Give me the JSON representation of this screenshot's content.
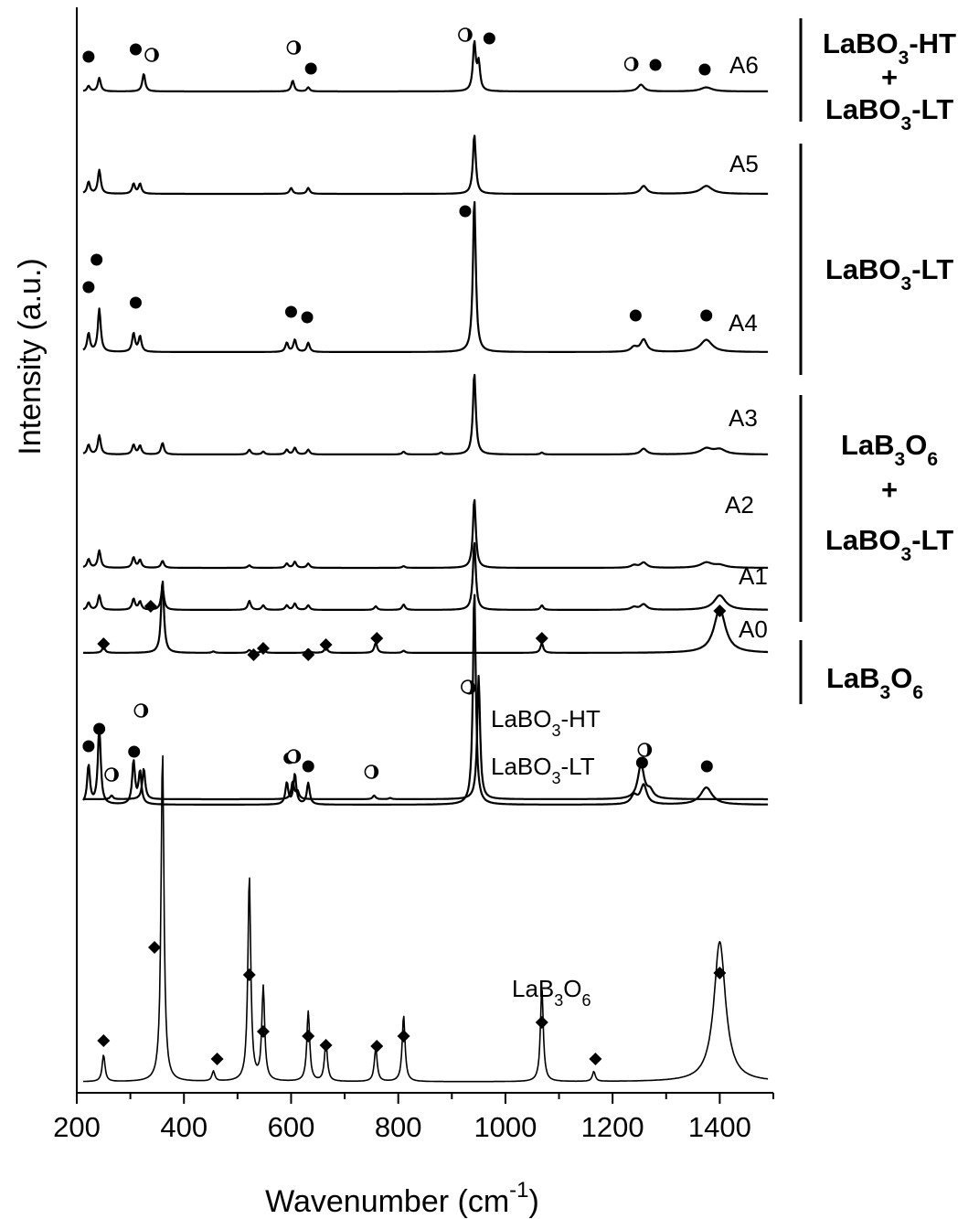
{
  "chart_data": {
    "type": "line",
    "title": "",
    "xlabel": "Wavenumber (cm",
    "xlabel_sup": "-1",
    "xlabel_suffix": ")",
    "ylabel": "Intensity (a.u.)",
    "xlim": [
      200,
      1500
    ],
    "x_ticks": [
      200,
      400,
      600,
      800,
      1000,
      1200,
      1400
    ],
    "x_tick_labels": [
      "200",
      "400",
      "600",
      "800",
      "1000",
      "1200",
      "1400"
    ],
    "grid": false,
    "y_tick_labels": false,
    "markers": {
      "filled_circle": "LaBO3-LT band",
      "half_circle": "LaBO3-HT band",
      "diamond": "LaB3O6 band"
    },
    "series": [
      {
        "name": "LaB3O6",
        "label": "LaB₃O₆",
        "label_base": "LaB",
        "label_sub1": "3",
        "label_mid": "O",
        "label_sub2": "6",
        "peaks": [
          [
            250,
            0.08
          ],
          [
            360,
            1.0
          ],
          [
            455,
            0.03
          ],
          [
            522,
            0.62
          ],
          [
            548,
            0.28
          ],
          [
            632,
            0.21
          ],
          [
            665,
            0.12
          ],
          [
            758,
            0.1
          ],
          [
            810,
            0.2
          ],
          [
            1068,
            0.28
          ],
          [
            1165,
            0.03
          ],
          [
            1400,
            0.42
          ]
        ],
        "markers": [
          {
            "type": "diamond",
            "x": 250
          },
          {
            "type": "diamond",
            "x": 345
          },
          {
            "type": "diamond",
            "x": 462
          },
          {
            "type": "diamond",
            "x": 522
          },
          {
            "type": "diamond",
            "x": 548
          },
          {
            "type": "diamond",
            "x": 632
          },
          {
            "type": "diamond",
            "x": 665
          },
          {
            "type": "diamond",
            "x": 760
          },
          {
            "type": "diamond",
            "x": 810
          },
          {
            "type": "diamond",
            "x": 1068
          },
          {
            "type": "diamond",
            "x": 1168
          },
          {
            "type": "diamond",
            "x": 1400
          }
        ]
      },
      {
        "name": "LaBO3-LT",
        "label": "LaBO₃-LT",
        "label_base": "LaBO",
        "label_sub1": "3",
        "label_mid": "-LT",
        "label_sub2": "",
        "peaks": [
          [
            222,
            0.18
          ],
          [
            242,
            0.36
          ],
          [
            306,
            0.2
          ],
          [
            318,
            0.15
          ],
          [
            592,
            0.1
          ],
          [
            607,
            0.14
          ],
          [
            632,
            0.1
          ],
          [
            942,
            1.0
          ],
          [
            1240,
            0.04
          ],
          [
            1258,
            0.09
          ],
          [
            1375,
            0.08
          ]
        ],
        "markers": [
          {
            "type": "circle",
            "x": 222
          },
          {
            "type": "circle",
            "x": 242
          },
          {
            "type": "circle",
            "x": 307
          },
          {
            "type": "circle",
            "x": 597
          },
          {
            "type": "circle",
            "x": 632
          },
          {
            "type": "circle",
            "x": 933
          },
          {
            "type": "circle",
            "x": 1255
          },
          {
            "type": "circle",
            "x": 1376
          }
        ]
      },
      {
        "name": "LaBO3-HT",
        "label": "LaBO₃-HT",
        "label_base": "LaBO",
        "label_sub1": "3",
        "label_mid": "-HT",
        "label_sub2": "",
        "peaks": [
          [
            265,
            0.03
          ],
          [
            325,
            0.25
          ],
          [
            603,
            0.14
          ],
          [
            612,
            0.06
          ],
          [
            755,
            0.03
          ],
          [
            785,
            0.01
          ],
          [
            950,
            1.0
          ],
          [
            1253,
            0.28
          ],
          [
            1270,
            0.06
          ]
        ],
        "markers": [
          {
            "type": "half",
            "x": 265
          },
          {
            "type": "half",
            "x": 320
          },
          {
            "type": "half",
            "x": 605
          },
          {
            "type": "half",
            "x": 750
          },
          {
            "type": "half",
            "x": 930
          },
          {
            "type": "half",
            "x": 1260
          }
        ]
      },
      {
        "name": "A0",
        "label": "A0",
        "peaks": [
          [
            250,
            0.08
          ],
          [
            360,
            1.0
          ],
          [
            455,
            0.02
          ],
          [
            522,
            0.04
          ],
          [
            548,
            0.05
          ],
          [
            632,
            0.05
          ],
          [
            665,
            0.08
          ],
          [
            758,
            0.14
          ],
          [
            810,
            0.03
          ],
          [
            1068,
            0.13
          ],
          [
            1400,
            0.6
          ]
        ],
        "markers": [
          {
            "type": "diamond",
            "x": 250
          },
          {
            "type": "diamond",
            "x": 338
          },
          {
            "type": "diamond",
            "x": 530
          },
          {
            "type": "diamond",
            "x": 548
          },
          {
            "type": "diamond",
            "x": 632
          },
          {
            "type": "diamond",
            "x": 665
          },
          {
            "type": "diamond",
            "x": 760
          },
          {
            "type": "diamond",
            "x": 1068
          },
          {
            "type": "diamond",
            "x": 1400
          }
        ]
      },
      {
        "name": "A1",
        "label": "A1",
        "peaks": [
          [
            222,
            0.08
          ],
          [
            242,
            0.16
          ],
          [
            306,
            0.12
          ],
          [
            318,
            0.09
          ],
          [
            360,
            0.25
          ],
          [
            522,
            0.1
          ],
          [
            548,
            0.05
          ],
          [
            592,
            0.05
          ],
          [
            607,
            0.07
          ],
          [
            632,
            0.05
          ],
          [
            758,
            0.04
          ],
          [
            810,
            0.06
          ],
          [
            942,
            0.75
          ],
          [
            1068,
            0.05
          ],
          [
            1240,
            0.03
          ],
          [
            1258,
            0.06
          ],
          [
            1400,
            0.16
          ]
        ],
        "markers": []
      },
      {
        "name": "A2",
        "label": "A2",
        "peaks": [
          [
            222,
            0.1
          ],
          [
            242,
            0.2
          ],
          [
            306,
            0.12
          ],
          [
            318,
            0.09
          ],
          [
            360,
            0.08
          ],
          [
            522,
            0.03
          ],
          [
            592,
            0.05
          ],
          [
            607,
            0.07
          ],
          [
            632,
            0.05
          ],
          [
            810,
            0.02
          ],
          [
            942,
            0.8
          ],
          [
            1240,
            0.03
          ],
          [
            1258,
            0.06
          ],
          [
            1375,
            0.06
          ],
          [
            1400,
            0.03
          ]
        ],
        "markers": []
      },
      {
        "name": "A3",
        "label": "A3",
        "peaks": [
          [
            222,
            0.1
          ],
          [
            242,
            0.2
          ],
          [
            306,
            0.1
          ],
          [
            318,
            0.09
          ],
          [
            360,
            0.12
          ],
          [
            522,
            0.05
          ],
          [
            548,
            0.03
          ],
          [
            592,
            0.05
          ],
          [
            607,
            0.07
          ],
          [
            632,
            0.05
          ],
          [
            810,
            0.03
          ],
          [
            880,
            0.02
          ],
          [
            942,
            0.85
          ],
          [
            1068,
            0.02
          ],
          [
            1258,
            0.06
          ],
          [
            1375,
            0.06
          ],
          [
            1400,
            0.05
          ]
        ],
        "markers": []
      },
      {
        "name": "A4",
        "label": "A4",
        "peaks": [
          [
            222,
            0.12
          ],
          [
            242,
            0.28
          ],
          [
            306,
            0.12
          ],
          [
            318,
            0.1
          ],
          [
            592,
            0.06
          ],
          [
            607,
            0.08
          ],
          [
            632,
            0.06
          ],
          [
            942,
            1.0
          ],
          [
            1240,
            0.03
          ],
          [
            1258,
            0.08
          ],
          [
            1375,
            0.08
          ]
        ],
        "markers": [
          {
            "type": "circle",
            "x": 222
          },
          {
            "type": "circle",
            "x": 237
          },
          {
            "type": "circle",
            "x": 310
          },
          {
            "type": "circle",
            "x": 600
          },
          {
            "type": "circle",
            "x": 630
          },
          {
            "type": "circle",
            "x": 925
          },
          {
            "type": "circle",
            "x": 1243
          },
          {
            "type": "circle",
            "x": 1375
          }
        ]
      },
      {
        "name": "A5",
        "label": "A5",
        "peaks": [
          [
            222,
            0.06
          ],
          [
            242,
            0.12
          ],
          [
            306,
            0.05
          ],
          [
            318,
            0.05
          ],
          [
            600,
            0.03
          ],
          [
            632,
            0.03
          ],
          [
            942,
            0.3
          ],
          [
            1258,
            0.04
          ],
          [
            1375,
            0.04
          ]
        ],
        "markers": []
      },
      {
        "name": "A6",
        "label": "A6",
        "peaks": [
          [
            222,
            0.04
          ],
          [
            242,
            0.1
          ],
          [
            325,
            0.13
          ],
          [
            603,
            0.08
          ],
          [
            632,
            0.03
          ],
          [
            942,
            0.35
          ],
          [
            950,
            0.2
          ],
          [
            1253,
            0.05
          ],
          [
            1375,
            0.03
          ]
        ],
        "markers": [
          {
            "type": "circle",
            "x": 222
          },
          {
            "type": "circle",
            "x": 310
          },
          {
            "type": "half",
            "x": 340
          },
          {
            "type": "half",
            "x": 605
          },
          {
            "type": "circle",
            "x": 637
          },
          {
            "type": "half",
            "x": 925
          },
          {
            "type": "circle",
            "x": 970
          },
          {
            "type": "half",
            "x": 1235
          },
          {
            "type": "circle",
            "x": 1280
          },
          {
            "type": "circle",
            "x": 1372
          }
        ]
      }
    ],
    "groups": [
      {
        "lines": [
          {
            "parts": [
              {
                "t": "LaBO"
              },
              {
                "t": "3",
                "sub": true
              },
              {
                "t": "-HT"
              }
            ]
          },
          {
            "parts": [
              {
                "t": "+"
              }
            ]
          },
          {
            "parts": [
              {
                "t": "LaBO"
              },
              {
                "t": "3",
                "sub": true
              },
              {
                "t": "-LT"
              }
            ]
          }
        ]
      },
      {
        "lines": [
          {
            "parts": [
              {
                "t": "LaBO"
              },
              {
                "t": "3",
                "sub": true
              },
              {
                "t": "-LT"
              }
            ]
          }
        ]
      },
      {
        "lines": [
          {
            "parts": [
              {
                "t": "LaB"
              },
              {
                "t": "3",
                "sub": true
              },
              {
                "t": "O"
              },
              {
                "t": "6",
                "sub": true
              }
            ]
          },
          {
            "parts": [
              {
                "t": "+"
              }
            ]
          },
          {
            "parts": [
              {
                "t": "LaBO"
              },
              {
                "t": "3",
                "sub": true
              },
              {
                "t": "-LT"
              }
            ]
          }
        ]
      },
      {
        "lines": [
          {
            "parts": [
              {
                "t": "LaB"
              },
              {
                "t": "3",
                "sub": true
              },
              {
                "t": "O"
              },
              {
                "t": "6",
                "sub": true
              }
            ]
          }
        ]
      }
    ]
  }
}
